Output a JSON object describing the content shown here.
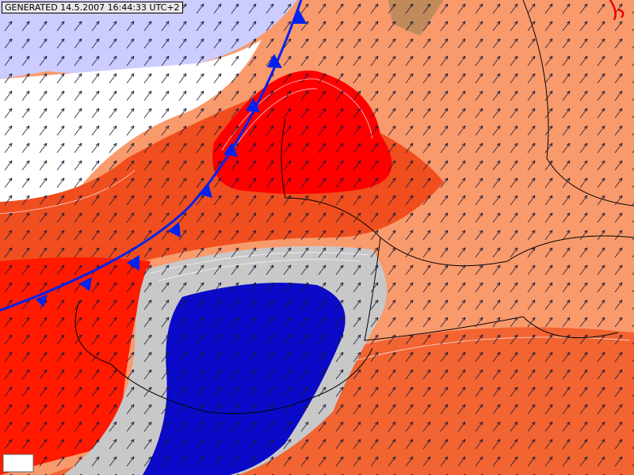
{
  "header": {
    "generated": "GENERATED 14.5.2007 16:44:33 UTC+2"
  }
}
